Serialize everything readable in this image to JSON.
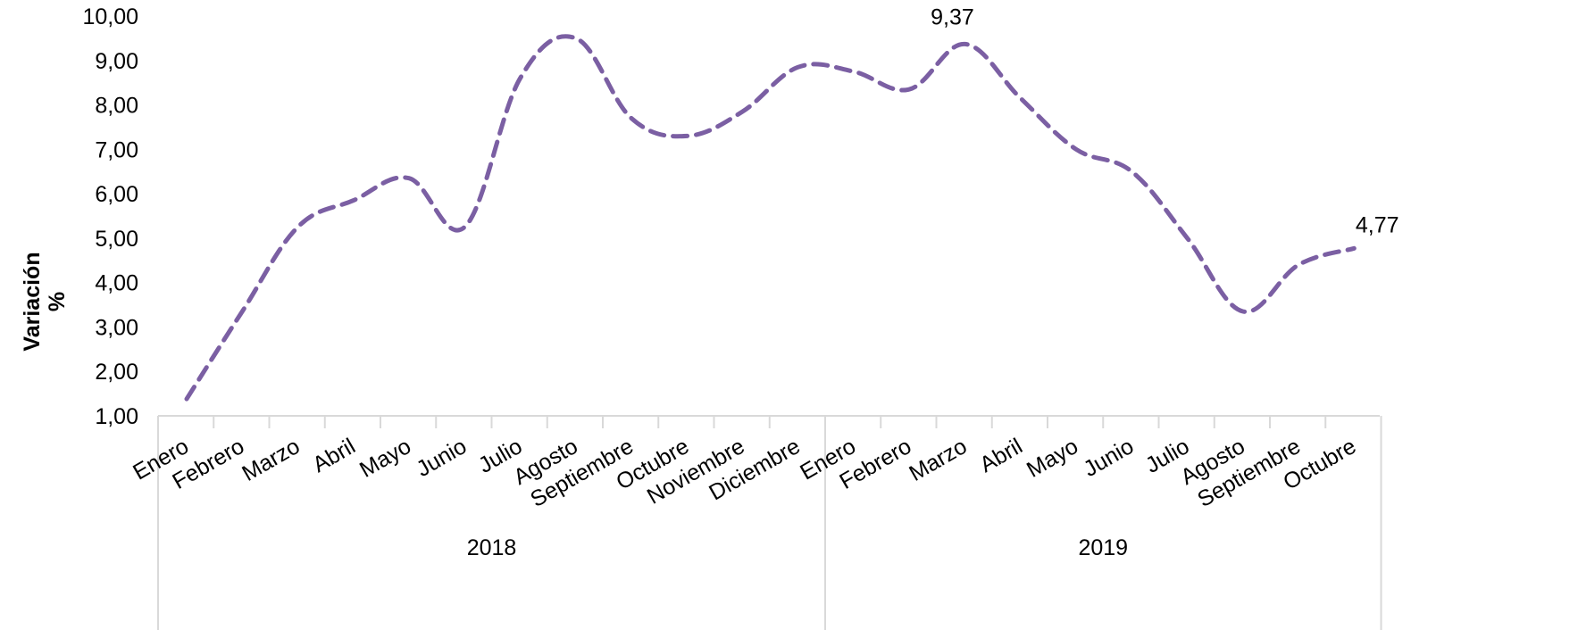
{
  "chart_data": {
    "type": "line",
    "title": "",
    "ylabel": "Variación %",
    "ylabel_lines": [
      "Variación",
      "%"
    ],
    "ylim": [
      1,
      10
    ],
    "yticks": [
      "1,00",
      "2,00",
      "3,00",
      "4,00",
      "5,00",
      "6,00",
      "7,00",
      "8,00",
      "9,00",
      "10,00"
    ],
    "grid": false,
    "legend": "none",
    "categories": [
      "Enero",
      "Febrero",
      "Marzo",
      "Abril",
      "Mayo",
      "Junio",
      "Julio",
      "Agosto",
      "Septiembre",
      "Octubre",
      "Noviembre",
      "Diciembre",
      "Enero",
      "Febrero",
      "Marzo",
      "Abril",
      "Mayo",
      "Junio",
      "Julio",
      "Agosto",
      "Septiembre",
      "Octubre"
    ],
    "groups": [
      {
        "label": "2018",
        "count": 12
      },
      {
        "label": "2019",
        "count": 10
      }
    ],
    "series": [
      {
        "color": "#7b5fa3",
        "style": "dashed",
        "smooth": true,
        "values": [
          1.38,
          3.35,
          5.25,
          5.85,
          6.35,
          5.25,
          8.6,
          9.5,
          7.7,
          7.3,
          7.85,
          8.85,
          8.75,
          8.35,
          9.37,
          8.15,
          7.0,
          6.5,
          5.0,
          3.35,
          4.4,
          4.77
        ]
      }
    ],
    "data_labels": [
      {
        "index": 14,
        "text": "9,37"
      },
      {
        "index": 21,
        "text": "4,77"
      }
    ]
  }
}
